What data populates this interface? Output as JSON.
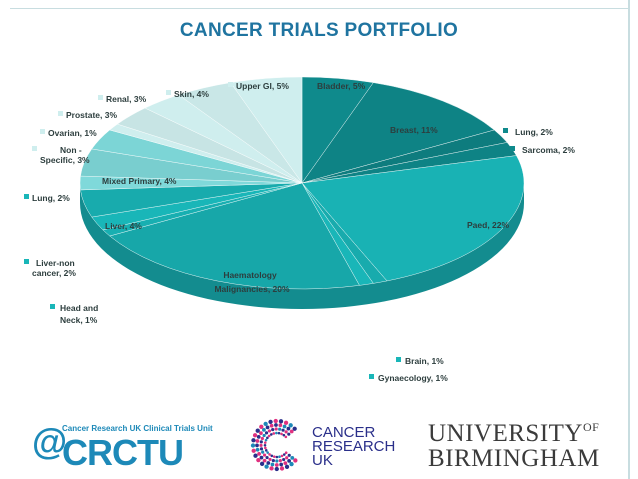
{
  "title": "CANCER TRIALS PORTFOLIO",
  "colors": {
    "title": "#1f74a0",
    "slice_dark": "#0f8a8c",
    "slice_mid": "#19b6b8",
    "slice_light": "#7fd9da",
    "slice_pale": "#cfeeee"
  },
  "chart_data": {
    "type": "pie",
    "title": "CANCER TRIALS PORTFOLIO",
    "slices": [
      {
        "label": "Bladder, 5%",
        "value": 5
      },
      {
        "label": "Breast, 11%",
        "value": 11
      },
      {
        "label": "Lung, 2%",
        "value": 2
      },
      {
        "label": "Sarcoma, 2%",
        "value": 2
      },
      {
        "label": "Paed, 22%",
        "value": 22
      },
      {
        "label": "Brain, 1%",
        "value": 1
      },
      {
        "label": "Gynaecology, 1%",
        "value": 1
      },
      {
        "label": "Haematology Malignancies, 20%",
        "value": 20
      },
      {
        "label": "Head and Neck, 1%",
        "value": 1
      },
      {
        "label": "Liver-non cancer, 2%",
        "value": 2
      },
      {
        "label": "Liver, 4%",
        "value": 4
      },
      {
        "label": "Lung, 2%",
        "value": 2
      },
      {
        "label": "Mixed Primary, 4%",
        "value": 4
      },
      {
        "label": "Non - Specific, 3%",
        "value": 3
      },
      {
        "label": "Ovarian, 1%",
        "value": 1
      },
      {
        "label": "Prostate, 3%",
        "value": 3
      },
      {
        "label": "Renal, 3%",
        "value": 3
      },
      {
        "label": "Skin, 4%",
        "value": 4
      },
      {
        "label": "Upper GI, 5%",
        "value": 5
      }
    ]
  },
  "labels": {
    "upper_gi": "Upper GI, 5%",
    "bladder": "Bladder, 5%",
    "skin": "Skin, 4%",
    "renal": "Renal, 3%",
    "prostate": "Prostate, 3%",
    "ovarian": "Ovarian, 1%",
    "non_specific_1": "Non -",
    "non_specific_2": "Specific, 3%",
    "mixed_primary": "Mixed Primary, 4%",
    "lung_left": "Lung, 2%",
    "liver": "Liver, 4%",
    "liver_non_1": "Liver-non",
    "liver_non_2": "cancer, 2%",
    "haem_1": "Haematology",
    "haem_2": "Malignancies, 20%",
    "head_neck_1": "Head and",
    "head_neck_2": "Neck, 1%",
    "brain": "Brain, 1%",
    "gynaecology": "Gynaecology, 1%",
    "paed": "Paed, 22%",
    "breast": "Breast, 11%",
    "lung_right": "Lung, 2%",
    "sarcoma": "Sarcoma, 2%"
  },
  "logos": {
    "crctu_small": "Cancer Research UK Clinical Trials Unit",
    "crctu_at": "@",
    "crctu_big": "CRCTU",
    "cruk_1": "CANCER",
    "cruk_2": "RESEARCH",
    "cruk_3": "UK",
    "uob_1": "UNIVERSITY",
    "uob_of": "OF",
    "uob_2": "BIRMINGHAM"
  }
}
